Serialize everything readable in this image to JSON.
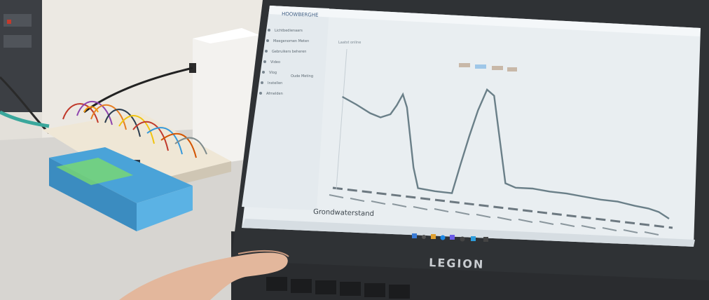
{
  "screen": {
    "brand": "HOOWBERGHE",
    "menu": [
      {
        "label": "Lichtbedienaars"
      },
      {
        "label": "Meegenomen Meten"
      },
      {
        "label": "Gebruikers beheren"
      },
      {
        "label": "Video"
      },
      {
        "label": "Vlog"
      },
      {
        "label": "Instellen"
      },
      {
        "label": "Afmelden"
      }
    ],
    "mid_label": "Laatst online",
    "filter_chip": "Oude Meting",
    "chart_caption": "Grondwaterstand"
  },
  "laptop": {
    "brand_label": "LEGION"
  },
  "colors": {
    "screen_bg": "#e9eef1",
    "sidebar_bg": "#e4eaee",
    "curve": "#6a7f88",
    "accent": "#3a7bd5",
    "laptop_body": "#2f3235",
    "bezel": "#1f2124",
    "led": "#7bd96f",
    "battery": "#4fa3d8"
  },
  "chart_data": {
    "type": "line",
    "title": "",
    "xlabel": "",
    "ylabel": "",
    "series": [
      {
        "points": [
          [
            0,
            0.8
          ],
          [
            0.04,
            0.74
          ],
          [
            0.08,
            0.67
          ],
          [
            0.11,
            0.64
          ],
          [
            0.14,
            0.68
          ],
          [
            0.16,
            0.77
          ],
          [
            0.18,
            0.88
          ],
          [
            0.19,
            0.76
          ],
          [
            0.2,
            0.2
          ],
          [
            0.21,
            0.01
          ],
          [
            0.26,
            0.0
          ],
          [
            0.31,
            0.0
          ],
          [
            0.34,
            0.28
          ],
          [
            0.37,
            0.55
          ],
          [
            0.4,
            0.8
          ],
          [
            0.43,
            1.0
          ],
          [
            0.45,
            0.95
          ],
          [
            0.47,
            0.15
          ],
          [
            0.5,
            0.12
          ],
          [
            0.55,
            0.13
          ],
          [
            0.6,
            0.12
          ],
          [
            0.65,
            0.12
          ],
          [
            0.7,
            0.11
          ],
          [
            0.75,
            0.1
          ],
          [
            0.8,
            0.1
          ],
          [
            0.85,
            0.08
          ],
          [
            0.89,
            0.07
          ],
          [
            0.92,
            0.05
          ],
          [
            0.95,
            0.0
          ]
        ]
      }
    ]
  }
}
